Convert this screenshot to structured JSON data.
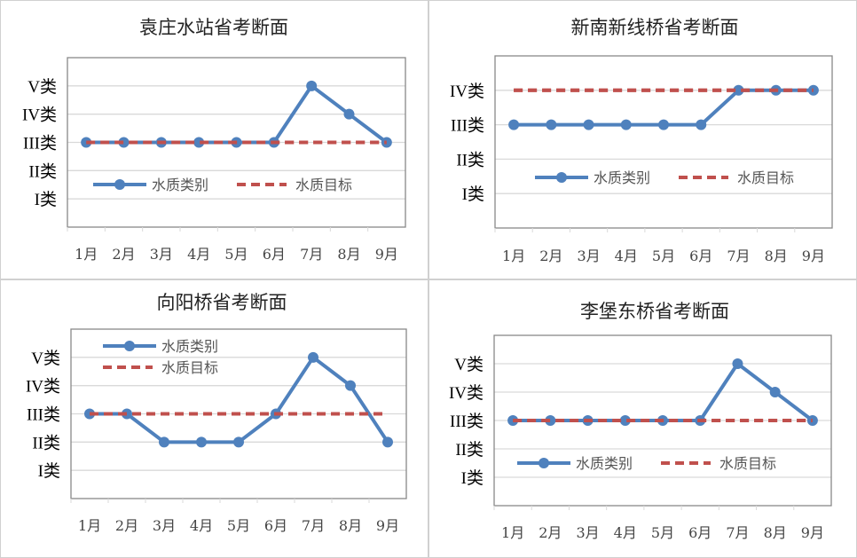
{
  "colors": {
    "quality": "#4f81bd",
    "target": "#c0504d",
    "grid": "#d9d9d9",
    "axis": "#888888",
    "panel_border": "#d0d0d0"
  },
  "y_categories": [
    "I类",
    "II类",
    "III类",
    "IV类",
    "V类"
  ],
  "chart_data": [
    {
      "type": "line",
      "title": "袁庄水站省考断面",
      "categories": [
        "1月",
        "2月",
        "3月",
        "4月",
        "5月",
        "6月",
        "7月",
        "8月",
        "9月"
      ],
      "yticks": [
        "I类",
        "II类",
        "III类",
        "IV类",
        "V类"
      ],
      "ylim": [
        0,
        6
      ],
      "legend": "inside-bottom",
      "series": [
        {
          "name": "水质类别",
          "values": [
            3,
            3,
            3,
            3,
            3,
            3,
            5,
            4,
            3
          ]
        },
        {
          "name": "水质目标",
          "values": [
            3,
            3,
            3,
            3,
            3,
            3,
            3,
            3,
            3
          ]
        }
      ]
    },
    {
      "type": "line",
      "title": "新南新线桥省考断面",
      "categories": [
        "1月",
        "2月",
        "3月",
        "4月",
        "5月",
        "6月",
        "7月",
        "8月",
        "9月"
      ],
      "yticks": [
        "I类",
        "II类",
        "III类",
        "IV类"
      ],
      "ylim": [
        0,
        5
      ],
      "legend": "inside-bottom",
      "series": [
        {
          "name": "水质类别",
          "values": [
            3,
            3,
            3,
            3,
            3,
            3,
            4,
            4,
            4
          ]
        },
        {
          "name": "水质目标",
          "values": [
            4,
            4,
            4,
            4,
            4,
            4,
            4,
            4,
            4
          ]
        }
      ]
    },
    {
      "type": "line",
      "title": "向阳桥省考断面",
      "categories": [
        "1月",
        "2月",
        "3月",
        "4月",
        "5月",
        "6月",
        "7月",
        "8月",
        "9月"
      ],
      "yticks": [
        "I类",
        "II类",
        "III类",
        "IV类",
        "V类"
      ],
      "ylim": [
        0,
        6
      ],
      "legend": "top-left",
      "series": [
        {
          "name": "水质类别",
          "values": [
            3,
            3,
            2,
            2,
            2,
            3,
            5,
            4,
            2
          ]
        },
        {
          "name": "水质目标",
          "values": [
            3,
            3,
            3,
            3,
            3,
            3,
            3,
            3,
            3
          ]
        }
      ]
    },
    {
      "type": "line",
      "title": "李堡东桥省考断面",
      "categories": [
        "1月",
        "2月",
        "3月",
        "4月",
        "5月",
        "6月",
        "7月",
        "8月",
        "9月"
      ],
      "yticks": [
        "I类",
        "II类",
        "III类",
        "IV类",
        "V类"
      ],
      "ylim": [
        0,
        6
      ],
      "legend": "inside-bottom",
      "series": [
        {
          "name": "水质类别",
          "values": [
            3,
            3,
            3,
            3,
            3,
            3,
            5,
            4,
            3
          ]
        },
        {
          "name": "水质目标",
          "values": [
            3,
            3,
            3,
            3,
            3,
            3,
            3,
            3,
            3
          ]
        }
      ]
    }
  ]
}
